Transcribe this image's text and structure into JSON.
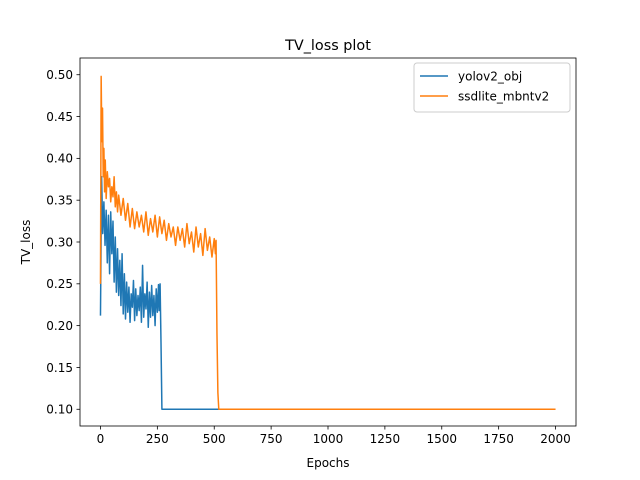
{
  "chart_data": {
    "type": "line",
    "title": "TV_loss plot",
    "xlabel": "Epochs",
    "ylabel": "TV_loss",
    "xlim": [
      -90,
      2090
    ],
    "ylim": [
      0.08,
      0.52
    ],
    "xticks": [
      0,
      250,
      500,
      750,
      1000,
      1250,
      1500,
      1750,
      2000
    ],
    "xtick_labels": [
      "0",
      "250",
      "500",
      "750",
      "1000",
      "1250",
      "1500",
      "1750",
      "2000"
    ],
    "yticks": [
      0.1,
      0.15,
      0.2,
      0.25,
      0.3,
      0.35,
      0.4,
      0.45,
      0.5
    ],
    "ytick_labels": [
      "0.10",
      "0.15",
      "0.20",
      "0.25",
      "0.30",
      "0.35",
      "0.40",
      "0.45",
      "0.50"
    ],
    "grid": false,
    "legend_position": "top-right",
    "series": [
      {
        "name": "yolov2_obj",
        "color": "#1f77b4",
        "x": [
          0,
          5,
          10,
          15,
          20,
          25,
          30,
          35,
          40,
          45,
          50,
          55,
          60,
          65,
          70,
          75,
          80,
          85,
          90,
          95,
          100,
          105,
          110,
          115,
          120,
          125,
          130,
          135,
          140,
          145,
          150,
          155,
          160,
          165,
          170,
          175,
          180,
          185,
          190,
          195,
          200,
          205,
          210,
          215,
          220,
          225,
          230,
          235,
          240,
          245,
          250,
          255,
          258,
          262,
          266,
          270,
          500,
          1000,
          1500,
          2000
        ],
        "y": [
          0.212,
          0.378,
          0.31,
          0.348,
          0.296,
          0.338,
          0.275,
          0.332,
          0.262,
          0.336,
          0.286,
          0.325,
          0.252,
          0.306,
          0.24,
          0.292,
          0.236,
          0.278,
          0.224,
          0.286,
          0.214,
          0.262,
          0.208,
          0.252,
          0.216,
          0.246,
          0.204,
          0.238,
          0.222,
          0.254,
          0.206,
          0.244,
          0.212,
          0.236,
          0.218,
          0.246,
          0.204,
          0.272,
          0.21,
          0.238,
          0.22,
          0.252,
          0.198,
          0.24,
          0.21,
          0.248,
          0.212,
          0.236,
          0.2,
          0.244,
          0.216,
          0.249,
          0.218,
          0.25,
          0.18,
          0.1,
          0.1,
          0.1,
          0.1,
          0.1
        ]
      },
      {
        "name": "ssdlite_mbntv2",
        "color": "#ff7f0e",
        "x": [
          0,
          3,
          6,
          9,
          12,
          15,
          18,
          21,
          25,
          30,
          35,
          40,
          45,
          50,
          55,
          60,
          65,
          70,
          75,
          80,
          90,
          100,
          110,
          120,
          130,
          140,
          150,
          160,
          170,
          180,
          190,
          200,
          210,
          220,
          230,
          240,
          250,
          260,
          270,
          280,
          290,
          300,
          310,
          320,
          330,
          340,
          350,
          360,
          370,
          380,
          390,
          400,
          410,
          420,
          430,
          440,
          450,
          460,
          470,
          480,
          490,
          500,
          505,
          508,
          512,
          516,
          520,
          1000,
          1500,
          2000
        ],
        "y": [
          0.25,
          0.498,
          0.42,
          0.46,
          0.378,
          0.412,
          0.36,
          0.398,
          0.352,
          0.384,
          0.366,
          0.376,
          0.348,
          0.366,
          0.354,
          0.378,
          0.342,
          0.36,
          0.336,
          0.356,
          0.332,
          0.352,
          0.326,
          0.346,
          0.318,
          0.34,
          0.316,
          0.336,
          0.318,
          0.332,
          0.312,
          0.336,
          0.308,
          0.328,
          0.312,
          0.332,
          0.306,
          0.33,
          0.31,
          0.326,
          0.302,
          0.322,
          0.306,
          0.318,
          0.296,
          0.318,
          0.302,
          0.316,
          0.294,
          0.322,
          0.298,
          0.312,
          0.288,
          0.318,
          0.294,
          0.31,
          0.284,
          0.316,
          0.29,
          0.306,
          0.282,
          0.304,
          0.286,
          0.302,
          0.19,
          0.12,
          0.1,
          0.1,
          0.1,
          0.1
        ]
      }
    ]
  }
}
